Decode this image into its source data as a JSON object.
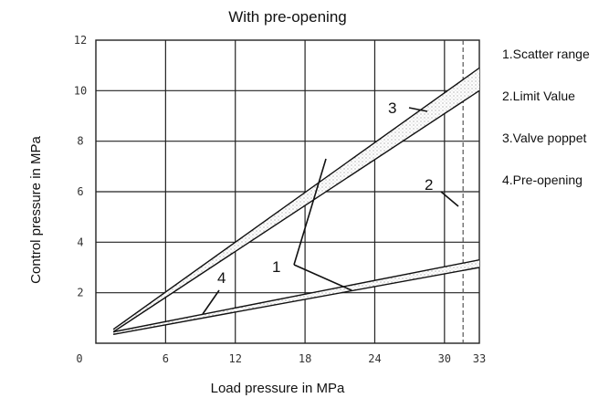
{
  "chart_data": {
    "type": "line",
    "title": "With pre-opening",
    "xlabel": "Load pressure in MPa",
    "ylabel": "Control pressure in MPa",
    "xlim": [
      0,
      33
    ],
    "ylim": [
      0,
      12
    ],
    "x_ticks": [
      0,
      6,
      12,
      18,
      24,
      30,
      33
    ],
    "y_ticks": [
      2,
      4,
      6,
      8,
      10,
      12
    ],
    "grid": true,
    "series": [
      {
        "name": "3.Valve poppet",
        "x": [
          1.5,
          33
        ],
        "y": [
          0.55,
          10.9
        ]
      },
      {
        "name": "3.Valve poppet",
        "x": [
          1.5,
          33
        ],
        "y": [
          0.45,
          10.0
        ]
      },
      {
        "name": "4.Pre-opening",
        "x": [
          1.5,
          33
        ],
        "y": [
          0.45,
          3.3
        ]
      },
      {
        "name": "4.Pre-opening",
        "x": [
          1.5,
          33
        ],
        "y": [
          0.35,
          3.0
        ]
      }
    ],
    "limit_value_x": 31.6,
    "legend": [
      "1.Scatter range",
      "2.Limit Value",
      "3.Valve poppet",
      "4.Pre-opening"
    ],
    "legend_position": "right",
    "annotations": [
      "1",
      "2",
      "3",
      "4"
    ]
  }
}
